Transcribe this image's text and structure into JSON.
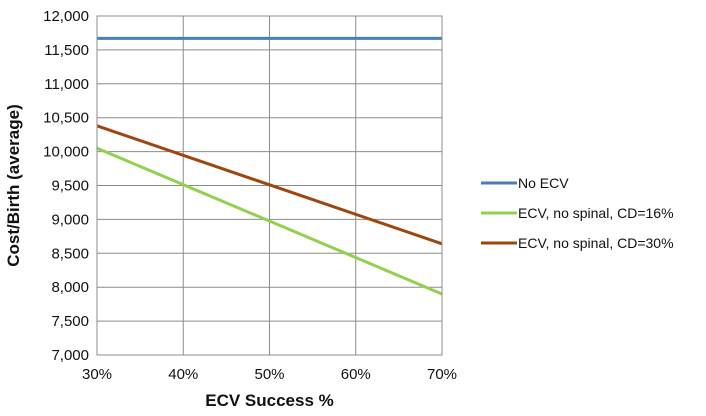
{
  "chart_data": {
    "type": "line",
    "title": "",
    "xlabel": "ECV Success %",
    "ylabel": "Cost/Birth (average)",
    "x": [
      30,
      70
    ],
    "x_tick_labels": [
      "30%",
      "40%",
      "50%",
      "60%",
      "70%"
    ],
    "x_ticks": [
      30,
      40,
      50,
      60,
      70
    ],
    "xlim": [
      30,
      70
    ],
    "y_tick_labels": [
      "7,000",
      "7,500",
      "8,000",
      "8,500",
      "9,000",
      "9,500",
      "10,000",
      "10,500",
      "11,000",
      "11,500",
      "12,000"
    ],
    "y_ticks": [
      7000,
      7500,
      8000,
      8500,
      9000,
      9500,
      10000,
      10500,
      11000,
      11500,
      12000
    ],
    "ylim": [
      7000,
      12000
    ],
    "grid": true,
    "legend_position": "right",
    "series": [
      {
        "name": "No ECV",
        "color": "#4a7ebb",
        "values": [
          11670,
          11670
        ]
      },
      {
        "name": "ECV, no spinal, CD=16%",
        "color": "#92d050",
        "values": [
          10050,
          7900
        ]
      },
      {
        "name": "ECV, no spinal, CD=30%",
        "color": "#a0450d",
        "values": [
          10380,
          8640
        ]
      }
    ]
  }
}
